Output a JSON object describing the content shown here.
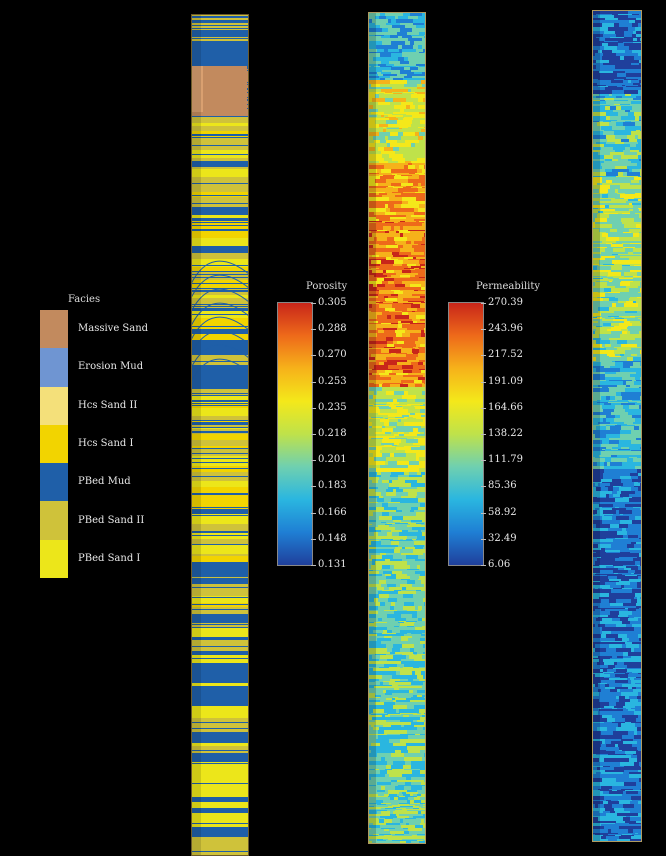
{
  "facies_legend": {
    "title": "Facies",
    "items": [
      {
        "label": "Massive Sand",
        "color": "#c28a5e"
      },
      {
        "label": "Erosion Mud",
        "color": "#6f95d2"
      },
      {
        "label": "Hcs Sand II",
        "color": "#f4e07a"
      },
      {
        "label": "Hcs Sand I",
        "color": "#f2d400"
      },
      {
        "label": "PBed Mud",
        "color": "#1f5fa8"
      },
      {
        "label": "PBed Sand II",
        "color": "#cfc23a"
      },
      {
        "label": "PBed Sand I",
        "color": "#ece61a"
      }
    ]
  },
  "porosity_scale": {
    "title": "Porosity",
    "ticks": [
      "0.305",
      "0.288",
      "0.270",
      "0.253",
      "0.235",
      "0.218",
      "0.201",
      "0.183",
      "0.166",
      "0.148",
      "0.131"
    ]
  },
  "permeability_scale": {
    "title": "Permeability",
    "ticks": [
      "270.39",
      "243.96",
      "217.52",
      "191.09",
      "164.66",
      "138.22",
      "111.79",
      "85.36",
      "58.92",
      "32.49",
      "6.06"
    ]
  },
  "colormap": [
    "#1f3f9c",
    "#1f7fd4",
    "#2ab6e0",
    "#6fd0b0",
    "#bfe24a",
    "#f4e81a",
    "#f6b21a",
    "#ee6a1a",
    "#c8261a"
  ]
}
